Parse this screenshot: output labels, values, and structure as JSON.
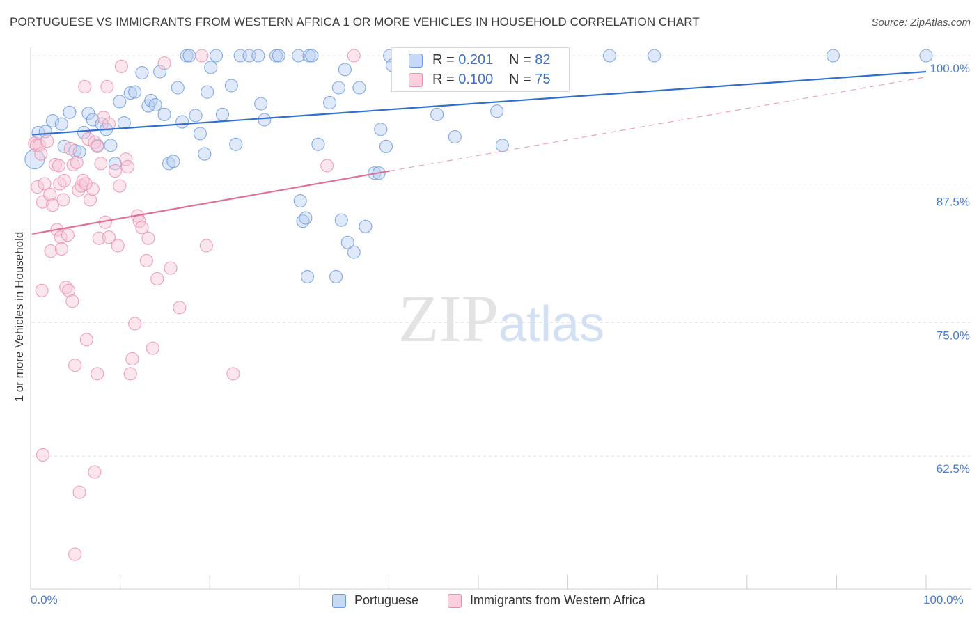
{
  "chart_data": {
    "type": "scatter",
    "title": "PORTUGUESE VS IMMIGRANTS FROM WESTERN AFRICA 1 OR MORE VEHICLES IN HOUSEHOLD CORRELATION CHART",
    "source": "Source: ZipAtlas.com",
    "xlabel": "",
    "ylabel": "1 or more Vehicles in Household",
    "xlim": [
      0,
      100
    ],
    "ylim": [
      50,
      101.5
    ],
    "x_tick_labels": [
      "0.0%",
      "100.0%"
    ],
    "y_ticks": [
      {
        "value": 100,
        "label": "100.0%"
      },
      {
        "value": 87.5,
        "label": "87.5%"
      },
      {
        "value": 75,
        "label": "75.0%"
      },
      {
        "value": 62.5,
        "label": "62.5%"
      }
    ],
    "watermark": "ZIPatlas",
    "series": [
      {
        "name": "Portuguese",
        "color": "#6b9be0",
        "fill": "#b7cff2",
        "R": "0.201",
        "N": "82",
        "trend": {
          "x": [
            0,
            100
          ],
          "y": [
            92.6,
            98.5
          ],
          "style": "solid"
        },
        "points": [
          [
            0.3,
            90.3
          ],
          [
            0.7,
            92.8
          ],
          [
            1.5,
            92.9
          ],
          [
            2.3,
            93.9
          ],
          [
            3.3,
            93.6
          ],
          [
            3.6,
            91.5
          ],
          [
            4.2,
            94.7
          ],
          [
            4.8,
            91.1
          ],
          [
            5.3,
            91.0
          ],
          [
            5.8,
            92.8
          ],
          [
            6.3,
            94.6
          ],
          [
            6.8,
            94.0
          ],
          [
            7.3,
            91.6
          ],
          [
            7.8,
            93.6
          ],
          [
            8.3,
            93.1
          ],
          [
            8.8,
            91.6
          ],
          [
            9.3,
            89.9
          ],
          [
            9.8,
            95.7
          ],
          [
            10.3,
            93.7
          ],
          [
            11.0,
            96.5
          ],
          [
            11.5,
            96.6
          ],
          [
            12.3,
            98.4
          ],
          [
            13.0,
            95.3
          ],
          [
            13.3,
            95.8
          ],
          [
            13.8,
            95.4
          ],
          [
            14.3,
            98.5
          ],
          [
            14.8,
            94.5
          ],
          [
            15.3,
            89.9
          ],
          [
            15.8,
            90.1
          ],
          [
            16.3,
            97.0
          ],
          [
            16.8,
            93.8
          ],
          [
            17.3,
            100.0
          ],
          [
            17.6,
            100.0
          ],
          [
            18.3,
            94.4
          ],
          [
            18.8,
            92.7
          ],
          [
            19.3,
            90.8
          ],
          [
            19.6,
            96.6
          ],
          [
            20.0,
            98.9
          ],
          [
            20.6,
            100.0
          ],
          [
            21.3,
            94.5
          ],
          [
            22.3,
            97.2
          ],
          [
            22.8,
            91.7
          ],
          [
            23.3,
            100.0
          ],
          [
            24.3,
            100.0
          ],
          [
            25.3,
            100.0
          ],
          [
            25.6,
            95.5
          ],
          [
            26.0,
            94.0
          ],
          [
            27.3,
            100.0
          ],
          [
            27.6,
            100.0
          ],
          [
            29.8,
            100.0
          ],
          [
            30.0,
            86.4
          ],
          [
            30.3,
            84.5
          ],
          [
            30.6,
            84.8
          ],
          [
            31.0,
            100.0
          ],
          [
            31.3,
            100.0
          ],
          [
            32.0,
            91.7
          ],
          [
            33.3,
            95.6
          ],
          [
            34.3,
            97.0
          ],
          [
            34.6,
            84.6
          ],
          [
            35.0,
            98.7
          ],
          [
            35.3,
            82.5
          ],
          [
            36.0,
            81.6
          ],
          [
            36.6,
            97.0
          ],
          [
            37.3,
            84.0
          ],
          [
            38.3,
            89.0
          ],
          [
            38.8,
            89.0
          ],
          [
            39.0,
            93.1
          ],
          [
            39.6,
            91.5
          ],
          [
            40.0,
            100.0
          ],
          [
            40.3,
            99.1
          ],
          [
            41.3,
            100.0
          ],
          [
            45.3,
            94.5
          ],
          [
            46.3,
            100.0
          ],
          [
            47.3,
            92.4
          ],
          [
            52.0,
            94.8
          ],
          [
            52.6,
            91.6
          ],
          [
            64.6,
            100.0
          ],
          [
            69.6,
            100.0
          ],
          [
            89.6,
            100.0
          ],
          [
            100.0,
            100.0
          ],
          [
            30.8,
            79.3
          ],
          [
            34.0,
            79.3
          ]
        ]
      },
      {
        "name": "Immigrants from Western Africa",
        "color": "#eb8fae",
        "fill": "#f8c7d7",
        "R": "0.100",
        "N": "75",
        "trend": {
          "x": [
            0,
            40
          ],
          "y": [
            83.3,
            89.2
          ],
          "style": "solid",
          "extension": {
            "x": [
              40,
              100
            ],
            "y": [
              89.2,
              98.0
            ],
            "style": "dashed"
          }
        },
        "points": [
          [
            0.3,
            91.8
          ],
          [
            0.5,
            91.6
          ],
          [
            0.6,
            87.7
          ],
          [
            0.8,
            91.6
          ],
          [
            1.0,
            90.8
          ],
          [
            1.2,
            86.3
          ],
          [
            1.4,
            88.0
          ],
          [
            1.7,
            92.0
          ],
          [
            2.0,
            87.0
          ],
          [
            2.1,
            81.7
          ],
          [
            2.3,
            86.0
          ],
          [
            2.6,
            89.8
          ],
          [
            2.8,
            83.7
          ],
          [
            3.1,
            88.0
          ],
          [
            3.2,
            83.0
          ],
          [
            3.3,
            81.9
          ],
          [
            3.5,
            86.5
          ],
          [
            3.6,
            88.3
          ],
          [
            3.8,
            78.3
          ],
          [
            4.0,
            83.2
          ],
          [
            4.1,
            78.0
          ],
          [
            4.3,
            91.3
          ],
          [
            4.5,
            77.0
          ],
          [
            4.6,
            89.8
          ],
          [
            4.8,
            71.0
          ],
          [
            5.0,
            90.0
          ],
          [
            5.2,
            87.4
          ],
          [
            5.5,
            87.8
          ],
          [
            5.7,
            88.3
          ],
          [
            5.9,
            97.1
          ],
          [
            6.1,
            73.4
          ],
          [
            6.3,
            92.2
          ],
          [
            6.5,
            86.5
          ],
          [
            6.8,
            87.5
          ],
          [
            7.0,
            91.9
          ],
          [
            7.3,
            91.5
          ],
          [
            7.5,
            82.9
          ],
          [
            7.7,
            89.9
          ],
          [
            8.0,
            94.2
          ],
          [
            8.2,
            84.4
          ],
          [
            8.4,
            97.1
          ],
          [
            8.6,
            83.0
          ],
          [
            9.3,
            89.2
          ],
          [
            9.6,
            82.2
          ],
          [
            9.8,
            87.8
          ],
          [
            10.0,
            99.0
          ],
          [
            10.5,
            90.3
          ],
          [
            10.7,
            89.6
          ],
          [
            11.0,
            70.2
          ],
          [
            11.2,
            71.6
          ],
          [
            11.5,
            74.9
          ],
          [
            11.8,
            85.0
          ],
          [
            12.0,
            84.5
          ],
          [
            12.3,
            83.9
          ],
          [
            12.8,
            80.8
          ],
          [
            13.0,
            82.9
          ],
          [
            13.5,
            72.6
          ],
          [
            14.0,
            79.1
          ],
          [
            14.8,
            99.3
          ],
          [
            15.5,
            80.1
          ],
          [
            16.5,
            76.4
          ],
          [
            19.0,
            100.0
          ],
          [
            19.5,
            82.2
          ],
          [
            22.5,
            70.2
          ],
          [
            33.0,
            89.7
          ],
          [
            36.0,
            100.0
          ],
          [
            1.2,
            62.6
          ],
          [
            7.0,
            61.0
          ],
          [
            5.3,
            59.1
          ],
          [
            4.8,
            53.3
          ],
          [
            7.3,
            70.2
          ],
          [
            3.0,
            89.7
          ],
          [
            6.0,
            88.0
          ],
          [
            8.6,
            93.6
          ],
          [
            1.1,
            78.0
          ]
        ]
      }
    ]
  },
  "legend_top": {
    "r_label": "R = ",
    "n_label": "N = "
  }
}
